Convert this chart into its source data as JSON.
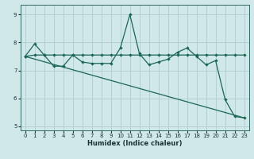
{
  "bg_color": "#d0e8e8",
  "grid_color": "#b0cccc",
  "line_color": "#1a6655",
  "xlabel": "Humidex (Indice chaleur)",
  "xlim": [
    -0.5,
    23.5
  ],
  "ylim": [
    4.85,
    9.35
  ],
  "xticks": [
    0,
    1,
    2,
    3,
    4,
    5,
    6,
    7,
    8,
    9,
    10,
    11,
    12,
    13,
    14,
    15,
    16,
    17,
    18,
    19,
    20,
    21,
    22,
    23
  ],
  "yticks": [
    5,
    6,
    7,
    8,
    9
  ],
  "s1x": [
    0,
    1,
    2,
    3,
    4,
    5,
    6,
    7,
    8,
    9,
    10,
    11,
    12,
    13,
    14,
    15,
    16,
    17,
    18,
    19,
    20,
    21,
    22,
    23
  ],
  "s1y": [
    7.5,
    7.95,
    7.55,
    7.15,
    7.15,
    7.55,
    7.3,
    7.25,
    7.25,
    7.25,
    7.8,
    9.0,
    7.6,
    7.2,
    7.3,
    7.4,
    7.65,
    7.8,
    7.5,
    7.2,
    7.35,
    5.95,
    5.35,
    5.3
  ],
  "s2x": [
    0,
    1,
    2,
    3,
    4,
    5,
    6,
    7,
    8,
    9,
    10,
    11,
    12,
    13,
    14,
    15,
    16,
    17,
    18,
    19,
    20,
    21,
    22,
    23
  ],
  "s2y": [
    7.5,
    7.55,
    7.55,
    7.55,
    7.55,
    7.55,
    7.55,
    7.55,
    7.55,
    7.55,
    7.55,
    7.55,
    7.55,
    7.55,
    7.55,
    7.55,
    7.55,
    7.55,
    7.55,
    7.55,
    7.55,
    7.55,
    7.55,
    7.55
  ],
  "s3x": [
    0,
    23
  ],
  "s3y": [
    7.5,
    5.3
  ]
}
